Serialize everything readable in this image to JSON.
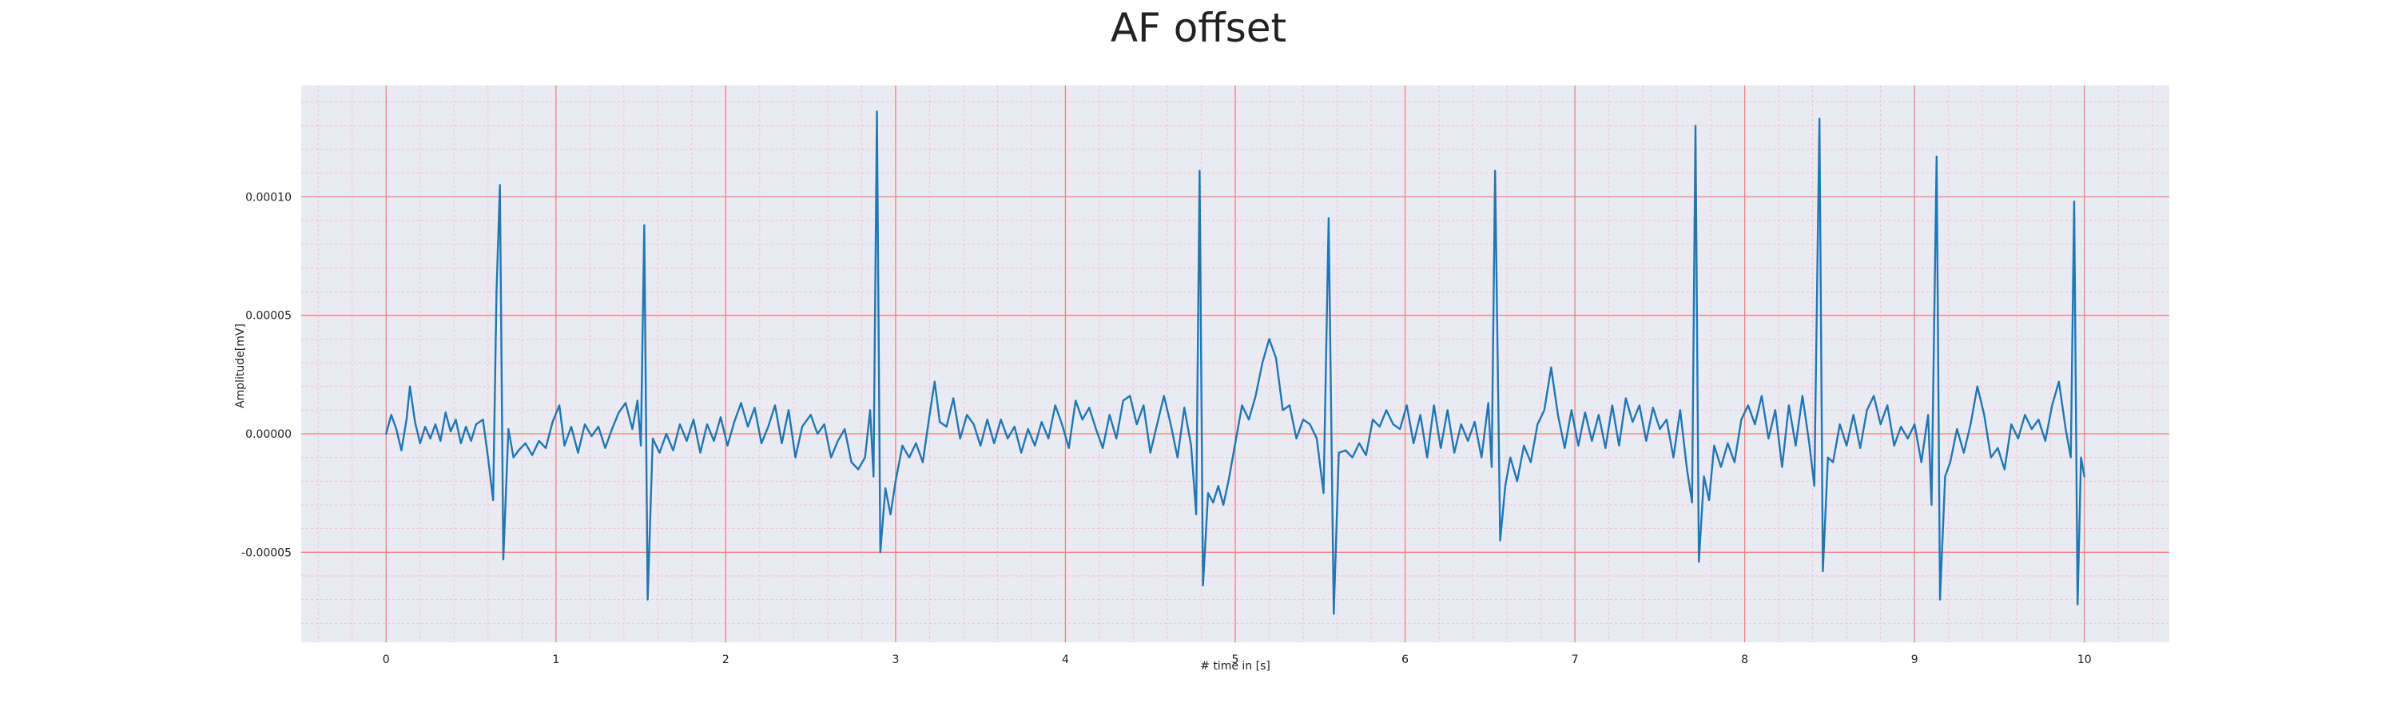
{
  "chart_data": {
    "type": "line",
    "title": "AF offset",
    "xlabel": "# time in [s]",
    "ylabel": "Amplitude[mV]",
    "xlim": [
      -0.5,
      10.5
    ],
    "ylim": [
      -8.8e-05,
      0.000147
    ],
    "x_ticks": [
      0,
      1,
      2,
      3,
      4,
      5,
      6,
      7,
      8,
      9,
      10
    ],
    "x_tick_labels": [
      "0",
      "1",
      "2",
      "3",
      "4",
      "5",
      "6",
      "7",
      "8",
      "9",
      "10"
    ],
    "y_ticks": [
      -5e-05,
      0.0,
      5e-05,
      0.0001
    ],
    "y_tick_labels": [
      "-0.00005",
      "0.00000",
      "0.00005",
      "0.00010"
    ],
    "grid": true,
    "minor_grid": true,
    "background_color": "#EAEAF2",
    "major_grid_color": "#F08080",
    "minor_grid_color": "#F5B8C6",
    "series": [
      {
        "color": "#1F77B4",
        "points": [
          [
            0.0,
            0.0
          ],
          [
            0.03,
            8e-06
          ],
          [
            0.06,
            2e-06
          ],
          [
            0.09,
            -7e-06
          ],
          [
            0.12,
            6e-06
          ],
          [
            0.14,
            2e-05
          ],
          [
            0.17,
            5e-06
          ],
          [
            0.2,
            -4e-06
          ],
          [
            0.23,
            3e-06
          ],
          [
            0.26,
            -2e-06
          ],
          [
            0.29,
            4e-06
          ],
          [
            0.32,
            -3e-06
          ],
          [
            0.35,
            9e-06
          ],
          [
            0.38,
            1e-06
          ],
          [
            0.41,
            6e-06
          ],
          [
            0.44,
            -4e-06
          ],
          [
            0.47,
            3e-06
          ],
          [
            0.5,
            -3e-06
          ],
          [
            0.53,
            4e-06
          ],
          [
            0.57,
            6e-06
          ],
          [
            0.6,
            -1e-05
          ],
          [
            0.63,
            -2.8e-05
          ],
          [
            0.65,
            6e-05
          ],
          [
            0.67,
            0.000105
          ],
          [
            0.69,
            -5.3e-05
          ],
          [
            0.72,
            2e-06
          ],
          [
            0.75,
            -1e-05
          ],
          [
            0.78,
            -7e-06
          ],
          [
            0.82,
            -4e-06
          ],
          [
            0.86,
            -9e-06
          ],
          [
            0.9,
            -3e-06
          ],
          [
            0.94,
            -6e-06
          ],
          [
            0.98,
            5e-06
          ],
          [
            1.02,
            1.2e-05
          ],
          [
            1.05,
            -5e-06
          ],
          [
            1.09,
            3e-06
          ],
          [
            1.13,
            -8e-06
          ],
          [
            1.17,
            4e-06
          ],
          [
            1.21,
            -1e-06
          ],
          [
            1.25,
            3e-06
          ],
          [
            1.29,
            -6e-06
          ],
          [
            1.33,
            2e-06
          ],
          [
            1.37,
            9e-06
          ],
          [
            1.41,
            1.3e-05
          ],
          [
            1.45,
            2e-06
          ],
          [
            1.48,
            1.4e-05
          ],
          [
            1.5,
            -5e-06
          ],
          [
            1.52,
            8.8e-05
          ],
          [
            1.54,
            -7e-05
          ],
          [
            1.57,
            -2e-06
          ],
          [
            1.61,
            -8e-06
          ],
          [
            1.65,
            0.0
          ],
          [
            1.69,
            -7e-06
          ],
          [
            1.73,
            4e-06
          ],
          [
            1.77,
            -3e-06
          ],
          [
            1.81,
            6e-06
          ],
          [
            1.85,
            -8e-06
          ],
          [
            1.89,
            4e-06
          ],
          [
            1.93,
            -3e-06
          ],
          [
            1.97,
            7e-06
          ],
          [
            2.01,
            -5e-06
          ],
          [
            2.05,
            5e-06
          ],
          [
            2.09,
            1.3e-05
          ],
          [
            2.13,
            3e-06
          ],
          [
            2.17,
            1.1e-05
          ],
          [
            2.21,
            -4e-06
          ],
          [
            2.25,
            3e-06
          ],
          [
            2.29,
            1.2e-05
          ],
          [
            2.33,
            -4e-06
          ],
          [
            2.37,
            1e-05
          ],
          [
            2.41,
            -1e-05
          ],
          [
            2.45,
            3e-06
          ],
          [
            2.5,
            8e-06
          ],
          [
            2.54,
            0.0
          ],
          [
            2.58,
            4e-06
          ],
          [
            2.62,
            -1e-05
          ],
          [
            2.66,
            -3e-06
          ],
          [
            2.7,
            2e-06
          ],
          [
            2.74,
            -1.2e-05
          ],
          [
            2.78,
            -1.5e-05
          ],
          [
            2.82,
            -1e-05
          ],
          [
            2.85,
            1e-05
          ],
          [
            2.87,
            -1.8e-05
          ],
          [
            2.89,
            0.000136
          ],
          [
            2.91,
            -5e-05
          ],
          [
            2.94,
            -2.3e-05
          ],
          [
            2.97,
            -3.4e-05
          ],
          [
            3.0,
            -2e-05
          ],
          [
            3.04,
            -5e-06
          ],
          [
            3.08,
            -1e-05
          ],
          [
            3.12,
            -4e-06
          ],
          [
            3.16,
            -1.2e-05
          ],
          [
            3.2,
            8e-06
          ],
          [
            3.23,
            2.2e-05
          ],
          [
            3.26,
            5e-06
          ],
          [
            3.3,
            3e-06
          ],
          [
            3.34,
            1.5e-05
          ],
          [
            3.38,
            -2e-06
          ],
          [
            3.42,
            8e-06
          ],
          [
            3.46,
            4e-06
          ],
          [
            3.5,
            -5e-06
          ],
          [
            3.54,
            6e-06
          ],
          [
            3.58,
            -4e-06
          ],
          [
            3.62,
            6e-06
          ],
          [
            3.66,
            -2e-06
          ],
          [
            3.7,
            3e-06
          ],
          [
            3.74,
            -8e-06
          ],
          [
            3.78,
            2e-06
          ],
          [
            3.82,
            -5e-06
          ],
          [
            3.86,
            5e-06
          ],
          [
            3.9,
            -2e-06
          ],
          [
            3.94,
            1.2e-05
          ],
          [
            3.98,
            4e-06
          ],
          [
            4.02,
            -6e-06
          ],
          [
            4.06,
            1.4e-05
          ],
          [
            4.1,
            6e-06
          ],
          [
            4.14,
            1.1e-05
          ],
          [
            4.18,
            2e-06
          ],
          [
            4.22,
            -6e-06
          ],
          [
            4.26,
            8e-06
          ],
          [
            4.3,
            -2e-06
          ],
          [
            4.34,
            1.4e-05
          ],
          [
            4.38,
            1.6e-05
          ],
          [
            4.42,
            4e-06
          ],
          [
            4.46,
            1.2e-05
          ],
          [
            4.5,
            -8e-06
          ],
          [
            4.54,
            4e-06
          ],
          [
            4.58,
            1.6e-05
          ],
          [
            4.62,
            4e-06
          ],
          [
            4.66,
            -1e-05
          ],
          [
            4.7,
            1.1e-05
          ],
          [
            4.74,
            -5e-06
          ],
          [
            4.77,
            -3.4e-05
          ],
          [
            4.79,
            0.000111
          ],
          [
            4.81,
            -6.4e-05
          ],
          [
            4.84,
            -2.5e-05
          ],
          [
            4.87,
            -2.9e-05
          ],
          [
            4.9,
            -2.2e-05
          ],
          [
            4.93,
            -3e-05
          ],
          [
            4.96,
            -2e-05
          ],
          [
            5.0,
            -4e-06
          ],
          [
            5.04,
            1.2e-05
          ],
          [
            5.08,
            6e-06
          ],
          [
            5.12,
            1.6e-05
          ],
          [
            5.16,
            3e-05
          ],
          [
            5.2,
            4e-05
          ],
          [
            5.24,
            3.2e-05
          ],
          [
            5.28,
            1e-05
          ],
          [
            5.32,
            1.2e-05
          ],
          [
            5.36,
            -2e-06
          ],
          [
            5.4,
            6e-06
          ],
          [
            5.44,
            4e-06
          ],
          [
            5.48,
            -2e-06
          ],
          [
            5.52,
            -2.5e-05
          ],
          [
            5.55,
            9.1e-05
          ],
          [
            5.58,
            -7.6e-05
          ],
          [
            5.61,
            -8e-06
          ],
          [
            5.65,
            -7e-06
          ],
          [
            5.69,
            -1e-05
          ],
          [
            5.73,
            -4e-06
          ],
          [
            5.77,
            -9e-06
          ],
          [
            5.81,
            6e-06
          ],
          [
            5.85,
            3e-06
          ],
          [
            5.89,
            1e-05
          ],
          [
            5.93,
            4e-06
          ],
          [
            5.97,
            2e-06
          ],
          [
            6.01,
            1.2e-05
          ],
          [
            6.05,
            -4e-06
          ],
          [
            6.09,
            8e-06
          ],
          [
            6.13,
            -1e-05
          ],
          [
            6.17,
            1.2e-05
          ],
          [
            6.21,
            -6e-06
          ],
          [
            6.25,
            1e-05
          ],
          [
            6.29,
            -8e-06
          ],
          [
            6.33,
            4e-06
          ],
          [
            6.37,
            -3e-06
          ],
          [
            6.41,
            5e-06
          ],
          [
            6.45,
            -1e-05
          ],
          [
            6.49,
            1.3e-05
          ],
          [
            6.51,
            -1.4e-05
          ],
          [
            6.53,
            0.000111
          ],
          [
            6.56,
            -4.5e-05
          ],
          [
            6.59,
            -2.2e-05
          ],
          [
            6.62,
            -1e-05
          ],
          [
            6.66,
            -2e-05
          ],
          [
            6.7,
            -5e-06
          ],
          [
            6.74,
            -1.2e-05
          ],
          [
            6.78,
            4e-06
          ],
          [
            6.82,
            1e-05
          ],
          [
            6.86,
            2.8e-05
          ],
          [
            6.9,
            8e-06
          ],
          [
            6.94,
            -6e-06
          ],
          [
            6.98,
            1e-05
          ],
          [
            7.02,
            -5e-06
          ],
          [
            7.06,
            9e-06
          ],
          [
            7.1,
            -3e-06
          ],
          [
            7.14,
            8e-06
          ],
          [
            7.18,
            -6e-06
          ],
          [
            7.22,
            1.2e-05
          ],
          [
            7.26,
            -5e-06
          ],
          [
            7.3,
            1.5e-05
          ],
          [
            7.34,
            5e-06
          ],
          [
            7.38,
            1.2e-05
          ],
          [
            7.42,
            -3e-06
          ],
          [
            7.46,
            1.1e-05
          ],
          [
            7.5,
            2e-06
          ],
          [
            7.54,
            6e-06
          ],
          [
            7.58,
            -1e-05
          ],
          [
            7.62,
            1e-05
          ],
          [
            7.66,
            -1.5e-05
          ],
          [
            7.69,
            -2.9e-05
          ],
          [
            7.71,
            0.00013
          ],
          [
            7.73,
            -5.4e-05
          ],
          [
            7.76,
            -1.8e-05
          ],
          [
            7.79,
            -2.8e-05
          ],
          [
            7.82,
            -5e-06
          ],
          [
            7.86,
            -1.4e-05
          ],
          [
            7.9,
            -4e-06
          ],
          [
            7.94,
            -1.2e-05
          ],
          [
            7.98,
            6e-06
          ],
          [
            8.02,
            1.2e-05
          ],
          [
            8.06,
            4e-06
          ],
          [
            8.1,
            1.6e-05
          ],
          [
            8.14,
            -2e-06
          ],
          [
            8.18,
            1e-05
          ],
          [
            8.22,
            -1.4e-05
          ],
          [
            8.26,
            1.2e-05
          ],
          [
            8.3,
            -5e-06
          ],
          [
            8.34,
            1.6e-05
          ],
          [
            8.38,
            -4e-06
          ],
          [
            8.41,
            -2.2e-05
          ],
          [
            8.44,
            0.000133
          ],
          [
            8.46,
            -5.8e-05
          ],
          [
            8.49,
            -1e-05
          ],
          [
            8.52,
            -1.2e-05
          ],
          [
            8.56,
            4e-06
          ],
          [
            8.6,
            -5e-06
          ],
          [
            8.64,
            8e-06
          ],
          [
            8.68,
            -6e-06
          ],
          [
            8.72,
            1e-05
          ],
          [
            8.76,
            1.6e-05
          ],
          [
            8.8,
            4e-06
          ],
          [
            8.84,
            1.2e-05
          ],
          [
            8.88,
            -5e-06
          ],
          [
            8.92,
            3e-06
          ],
          [
            8.96,
            -2e-06
          ],
          [
            9.0,
            4e-06
          ],
          [
            9.04,
            -1.2e-05
          ],
          [
            9.08,
            8e-06
          ],
          [
            9.1,
            -3e-05
          ],
          [
            9.13,
            0.000117
          ],
          [
            9.15,
            -7e-05
          ],
          [
            9.18,
            -1.8e-05
          ],
          [
            9.21,
            -1.2e-05
          ],
          [
            9.25,
            2e-06
          ],
          [
            9.29,
            -8e-06
          ],
          [
            9.33,
            4e-06
          ],
          [
            9.37,
            2e-05
          ],
          [
            9.41,
            8e-06
          ],
          [
            9.45,
            -1e-05
          ],
          [
            9.49,
            -6e-06
          ],
          [
            9.53,
            -1.5e-05
          ],
          [
            9.57,
            4e-06
          ],
          [
            9.61,
            -2e-06
          ],
          [
            9.65,
            8e-06
          ],
          [
            9.69,
            2e-06
          ],
          [
            9.73,
            6e-06
          ],
          [
            9.77,
            -3e-06
          ],
          [
            9.81,
            1.2e-05
          ],
          [
            9.85,
            2.2e-05
          ],
          [
            9.89,
            2e-06
          ],
          [
            9.92,
            -1e-05
          ],
          [
            9.94,
            9.8e-05
          ],
          [
            9.96,
            -7.2e-05
          ],
          [
            9.98,
            -1e-05
          ],
          [
            10.0,
            -1.8e-05
          ]
        ]
      }
    ]
  }
}
